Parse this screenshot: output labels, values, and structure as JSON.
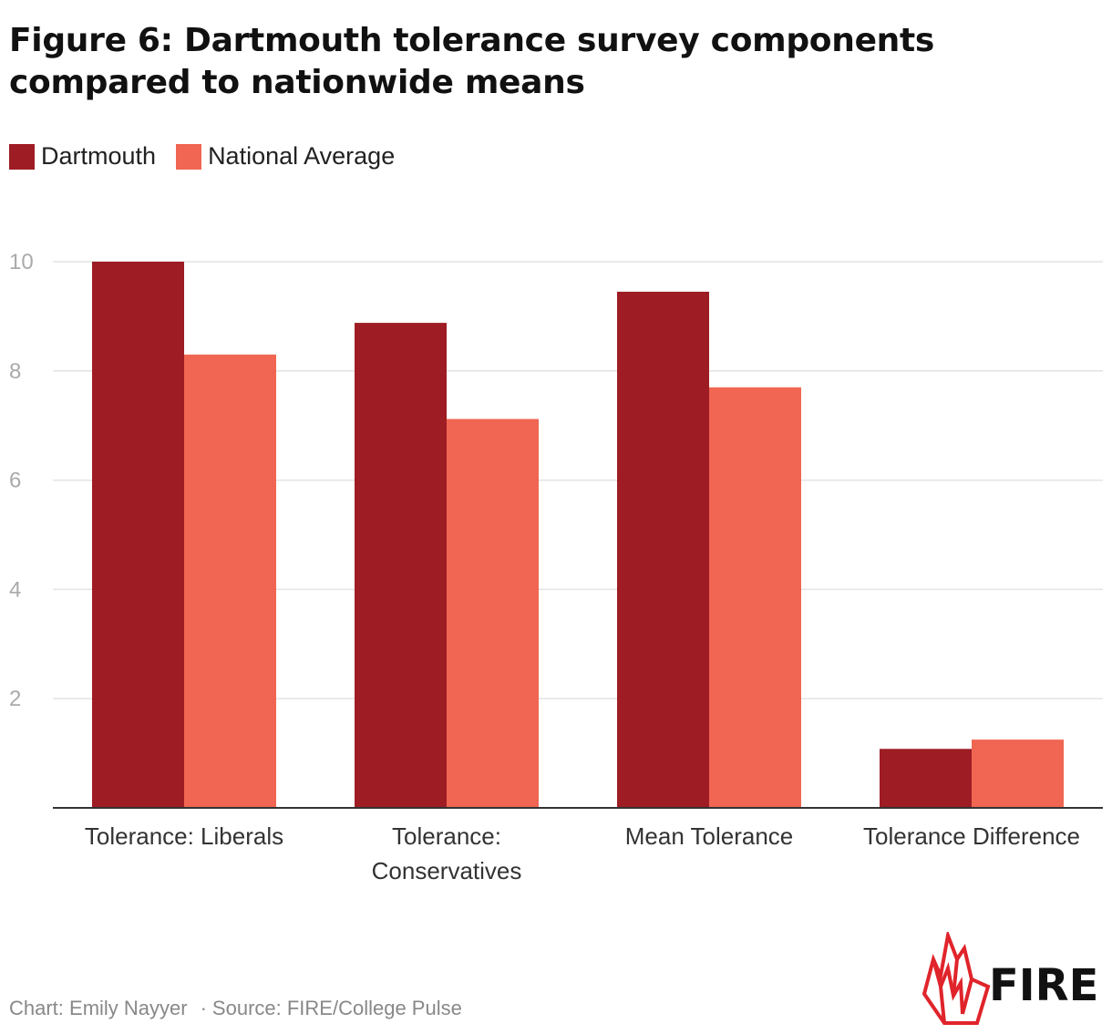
{
  "title": "Figure 6: Dartmouth tolerance survey components compared to nationwide means",
  "legend": [
    {
      "label": "Dartmouth",
      "color": "#9e1c24"
    },
    {
      "label": "National Average",
      "color": "#f06652"
    }
  ],
  "chart_data": {
    "type": "bar",
    "title": "Figure 6: Dartmouth tolerance survey components compared to nationwide means",
    "categories": [
      [
        "Tolerance: Liberals"
      ],
      [
        "Tolerance:",
        "Conservatives"
      ],
      [
        "Mean Tolerance"
      ],
      [
        "Tolerance Difference"
      ]
    ],
    "series": [
      {
        "name": "Dartmouth",
        "color": "#9e1c24",
        "values": [
          10.0,
          8.88,
          9.45,
          1.08
        ]
      },
      {
        "name": "National Average",
        "color": "#f06652",
        "values": [
          8.3,
          7.12,
          7.7,
          1.25
        ]
      }
    ],
    "yticks": [
      2,
      4,
      6,
      8,
      10
    ],
    "ylim": [
      0,
      10
    ],
    "grid": true,
    "legend_position": "top-left"
  },
  "footer": {
    "credit": "Chart: Emily Nayyer",
    "separator": "·",
    "source": "Source: FIRE/College Pulse"
  },
  "logo": {
    "text": "FIRE",
    "color": "#e0242b",
    "icon": "flame-icon"
  }
}
